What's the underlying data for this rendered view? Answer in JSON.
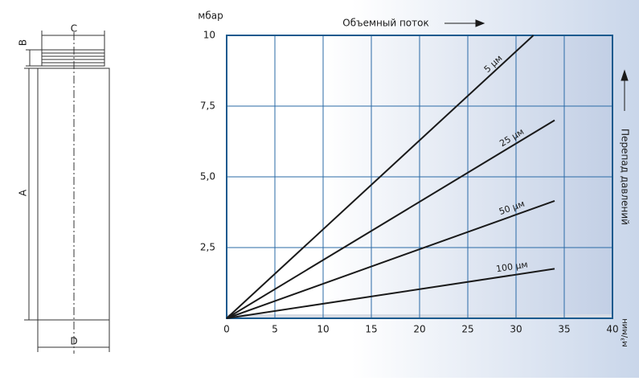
{
  "diagram": {
    "labels": [
      "A",
      "B",
      "C",
      "D"
    ]
  },
  "chart_data": {
    "type": "line",
    "x_title": "Объемный поток",
    "y_title": "Перепад давлений",
    "y_unit": "мбар",
    "x_unit": "м³/мин",
    "series": [
      {
        "name": "5 µм",
        "color": "#1a1a1a",
        "x": [
          0,
          31.8
        ],
        "values": [
          0,
          10
        ]
      },
      {
        "name": "25 µм",
        "color": "#1a1a1a",
        "x": [
          0,
          34
        ],
        "values": [
          0,
          7
        ]
      },
      {
        "name": "50 µм",
        "color": "#1a1a1a",
        "x": [
          0,
          34
        ],
        "values": [
          0,
          4.15
        ]
      },
      {
        "name": "100 µм",
        "color": "#1a1a1a",
        "x": [
          0,
          34
        ],
        "values": [
          0,
          1.75
        ]
      }
    ],
    "xlim": [
      0,
      40
    ],
    "xticks": [
      0,
      5,
      10,
      15,
      20,
      25,
      30,
      35,
      40
    ],
    "ylim": [
      0,
      10
    ],
    "yticks": [
      {
        "value": 2.5,
        "label": "2,5"
      },
      {
        "value": 5,
        "label": "5,0"
      },
      {
        "value": 7.5,
        "label": "7,5"
      },
      10
    ],
    "grid": true,
    "grid_color": "#2a6aa6",
    "frame_color": "#1b5a8e"
  }
}
